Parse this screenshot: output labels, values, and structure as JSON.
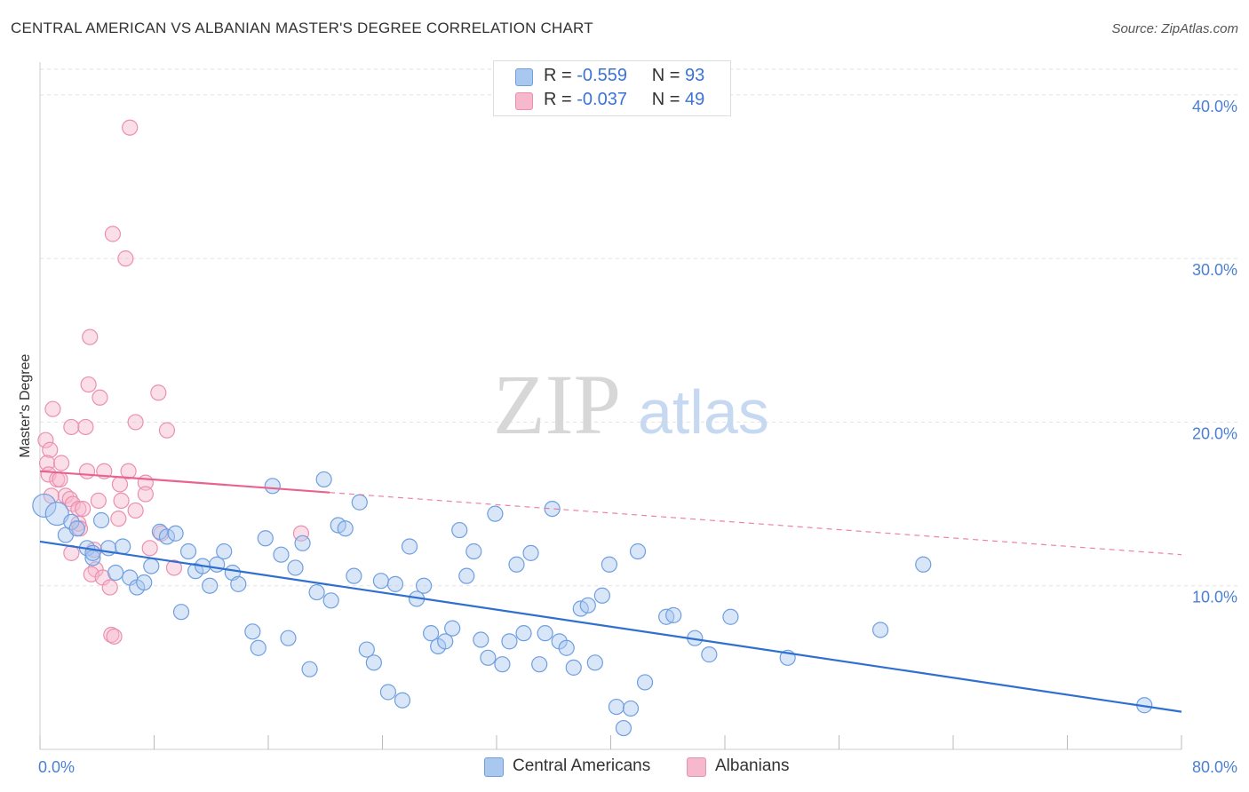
{
  "title": "CENTRAL AMERICAN VS ALBANIAN MASTER'S DEGREE CORRELATION CHART",
  "source": "Source: ZipAtlas.com",
  "watermark": {
    "zip": "ZIP",
    "atlas": "atlas"
  },
  "legend": {
    "rows": [
      {
        "r_label": "R =",
        "r_value": "-0.559",
        "n_label": "N =",
        "n_value": "93"
      },
      {
        "r_label": "R =",
        "r_value": "-0.037",
        "n_label": "N =",
        "n_value": "49"
      }
    ]
  },
  "bottom_legend": {
    "blue_label": "Central Americans",
    "pink_label": "Albanians"
  },
  "colors": {
    "blue_fill": "#a9c8f0",
    "blue_stroke": "#6f9fe0",
    "blue_line": "#2f6fd0",
    "pink_fill": "#f6b8cc",
    "pink_stroke": "#ec8fae",
    "pink_line": "#e8648f",
    "tick_label": "#4a7fd4",
    "grid": "#e2e2e2"
  },
  "chart_data": {
    "type": "scatter",
    "title": "CENTRAL AMERICAN VS ALBANIAN MASTER'S DEGREE CORRELATION CHART",
    "xlabel": "",
    "ylabel": "Master's Degree",
    "xlim": [
      0,
      80
    ],
    "ylim": [
      0,
      42
    ],
    "x_tick_labels": {
      "min": "0.0%",
      "max": "80.0%"
    },
    "y_ticks": [
      {
        "value": 10,
        "label": "10.0%"
      },
      {
        "value": 20,
        "label": "20.0%"
      },
      {
        "value": 30,
        "label": "30.0%"
      },
      {
        "value": 40,
        "label": "40.0%"
      }
    ],
    "series": [
      {
        "name": "Central Americans",
        "r": -0.559,
        "n": 93,
        "trend": {
          "x0": 0,
          "y0": 12.7,
          "x1": 80,
          "y1": 2.3
        },
        "points": [
          [
            0.3,
            14.9
          ],
          [
            1.2,
            14.4
          ],
          [
            1.8,
            13.1
          ],
          [
            2.2,
            13.9
          ],
          [
            2.6,
            13.5
          ],
          [
            3.3,
            12.3
          ],
          [
            3.7,
            11.7
          ],
          [
            4.3,
            14.0
          ],
          [
            4.8,
            12.3
          ],
          [
            5.3,
            10.8
          ],
          [
            5.8,
            12.4
          ],
          [
            6.3,
            10.5
          ],
          [
            6.8,
            9.9
          ],
          [
            7.3,
            10.2
          ],
          [
            7.8,
            11.2
          ],
          [
            8.4,
            13.3
          ],
          [
            8.9,
            13.0
          ],
          [
            9.5,
            13.2
          ],
          [
            9.9,
            8.4
          ],
          [
            10.4,
            12.1
          ],
          [
            10.9,
            10.9
          ],
          [
            11.4,
            11.2
          ],
          [
            11.9,
            10.0
          ],
          [
            12.4,
            11.3
          ],
          [
            12.9,
            12.1
          ],
          [
            13.5,
            10.8
          ],
          [
            13.9,
            10.1
          ],
          [
            14.9,
            7.2
          ],
          [
            15.3,
            6.2
          ],
          [
            15.8,
            12.9
          ],
          [
            16.3,
            16.1
          ],
          [
            16.9,
            11.9
          ],
          [
            17.4,
            6.8
          ],
          [
            17.9,
            11.1
          ],
          [
            18.4,
            12.6
          ],
          [
            18.9,
            4.9
          ],
          [
            19.4,
            9.6
          ],
          [
            19.9,
            16.5
          ],
          [
            20.4,
            9.1
          ],
          [
            20.9,
            13.7
          ],
          [
            21.4,
            13.5
          ],
          [
            22.0,
            10.6
          ],
          [
            22.4,
            15.1
          ],
          [
            22.9,
            6.1
          ],
          [
            23.4,
            5.3
          ],
          [
            23.9,
            10.3
          ],
          [
            24.4,
            3.5
          ],
          [
            24.9,
            10.1
          ],
          [
            25.4,
            3.0
          ],
          [
            25.9,
            12.4
          ],
          [
            26.4,
            9.2
          ],
          [
            26.9,
            10.0
          ],
          [
            27.4,
            7.1
          ],
          [
            27.9,
            6.3
          ],
          [
            28.4,
            6.6
          ],
          [
            28.9,
            7.4
          ],
          [
            29.4,
            13.4
          ],
          [
            29.9,
            10.6
          ],
          [
            30.4,
            12.1
          ],
          [
            30.9,
            6.7
          ],
          [
            31.4,
            5.6
          ],
          [
            31.9,
            14.4
          ],
          [
            32.4,
            5.2
          ],
          [
            32.9,
            6.6
          ],
          [
            33.4,
            11.3
          ],
          [
            33.9,
            7.1
          ],
          [
            34.4,
            12.0
          ],
          [
            35.0,
            5.2
          ],
          [
            35.4,
            7.1
          ],
          [
            35.9,
            14.7
          ],
          [
            36.4,
            6.6
          ],
          [
            36.9,
            6.2
          ],
          [
            37.4,
            5.0
          ],
          [
            37.9,
            8.6
          ],
          [
            38.4,
            8.8
          ],
          [
            38.9,
            5.3
          ],
          [
            39.4,
            9.4
          ],
          [
            39.9,
            11.3
          ],
          [
            40.4,
            2.6
          ],
          [
            40.9,
            1.3
          ],
          [
            41.4,
            2.5
          ],
          [
            41.9,
            12.1
          ],
          [
            42.4,
            4.1
          ],
          [
            43.9,
            8.1
          ],
          [
            44.4,
            8.2
          ],
          [
            45.9,
            6.8
          ],
          [
            46.9,
            5.8
          ],
          [
            48.4,
            8.1
          ],
          [
            52.4,
            5.6
          ],
          [
            58.9,
            7.3
          ],
          [
            61.9,
            11.3
          ],
          [
            77.4,
            2.7
          ],
          [
            3.7,
            12.0
          ]
        ]
      },
      {
        "name": "Albanians",
        "r": -0.037,
        "n": 49,
        "trend": {
          "x0": 0,
          "y0": 17.0,
          "x1": 20.3,
          "y1": 15.7
        },
        "trend_dashed": {
          "x0": 20.3,
          "y0": 15.7,
          "x1": 80,
          "y1": 11.9
        },
        "points": [
          [
            6.3,
            38.0
          ],
          [
            5.1,
            31.5
          ],
          [
            6.0,
            30.0
          ],
          [
            3.5,
            25.2
          ],
          [
            3.4,
            22.3
          ],
          [
            4.2,
            21.5
          ],
          [
            8.3,
            21.8
          ],
          [
            0.9,
            20.8
          ],
          [
            2.2,
            19.7
          ],
          [
            3.2,
            19.7
          ],
          [
            6.7,
            20.0
          ],
          [
            8.9,
            19.5
          ],
          [
            0.4,
            18.9
          ],
          [
            0.7,
            18.3
          ],
          [
            0.5,
            17.5
          ],
          [
            1.5,
            17.5
          ],
          [
            3.3,
            17.0
          ],
          [
            4.5,
            17.0
          ],
          [
            6.2,
            17.0
          ],
          [
            0.6,
            16.8
          ],
          [
            1.2,
            16.5
          ],
          [
            1.4,
            16.5
          ],
          [
            7.4,
            16.3
          ],
          [
            5.6,
            16.2
          ],
          [
            0.8,
            15.5
          ],
          [
            1.8,
            15.5
          ],
          [
            2.1,
            15.3
          ],
          [
            7.4,
            15.6
          ],
          [
            2.3,
            15.0
          ],
          [
            4.1,
            15.2
          ],
          [
            2.7,
            14.7
          ],
          [
            3.0,
            14.7
          ],
          [
            6.7,
            14.6
          ],
          [
            2.7,
            13.8
          ],
          [
            2.8,
            13.5
          ],
          [
            5.5,
            14.1
          ],
          [
            8.5,
            13.2
          ],
          [
            2.2,
            12.0
          ],
          [
            7.7,
            12.3
          ],
          [
            18.3,
            13.2
          ],
          [
            3.8,
            12.2
          ],
          [
            3.9,
            11.0
          ],
          [
            9.4,
            11.1
          ],
          [
            3.6,
            10.7
          ],
          [
            4.4,
            10.5
          ],
          [
            4.9,
            9.9
          ],
          [
            5.0,
            7.0
          ],
          [
            5.2,
            6.9
          ],
          [
            5.7,
            15.2
          ]
        ]
      }
    ]
  }
}
